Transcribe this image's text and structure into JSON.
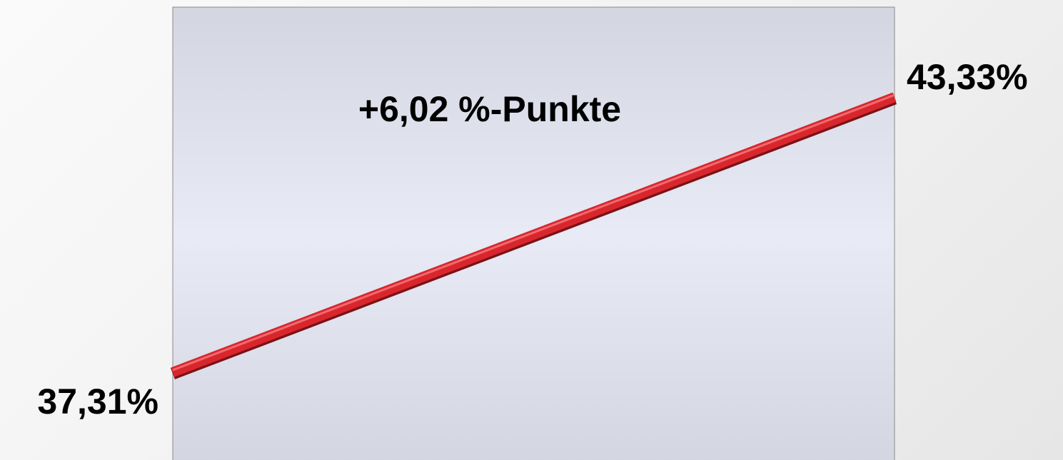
{
  "chart_data": {
    "type": "line",
    "categories": [
      "",
      ""
    ],
    "series": [
      {
        "values": [
          37.31,
          43.33
        ],
        "color": "#d9262c"
      }
    ],
    "data_labels": [
      "37,31%",
      "43,33%"
    ],
    "annotation": "+6,02 %-Punkte",
    "ylim": [
      35.31,
      45.3
    ],
    "grid": false,
    "legend": "none",
    "plot_background": [
      "#d3d6e0",
      "#e8eaf6",
      "#d3d6e0"
    ]
  }
}
